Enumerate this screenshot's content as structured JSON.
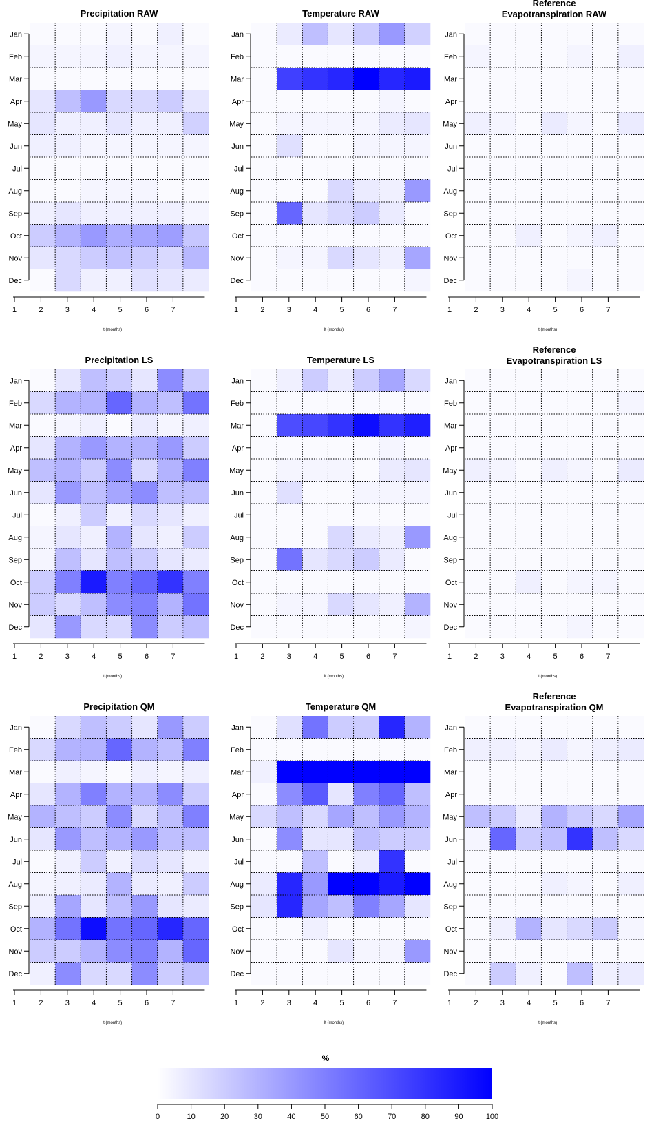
{
  "chart_data": [
    {
      "type": "heatmap",
      "title": "Precipitation RAW",
      "xlabel": "lt (months)",
      "x": [
        1,
        2,
        3,
        4,
        5,
        6,
        7
      ],
      "y": [
        "Jan",
        "Feb",
        "Mar",
        "Apr",
        "May",
        "Jun",
        "Jul",
        "Aug",
        "Sep",
        "Oct",
        "Nov",
        "Dec"
      ],
      "values": [
        [
          2,
          2,
          2,
          4,
          2,
          6,
          2
        ],
        [
          4,
          4,
          4,
          6,
          4,
          4,
          4
        ],
        [
          2,
          2,
          2,
          2,
          2,
          2,
          2
        ],
        [
          10,
          25,
          40,
          15,
          15,
          20,
          10
        ],
        [
          10,
          6,
          6,
          10,
          6,
          6,
          18
        ],
        [
          6,
          6,
          4,
          4,
          4,
          4,
          4
        ],
        [
          2,
          2,
          2,
          2,
          2,
          2,
          2
        ],
        [
          2,
          2,
          4,
          4,
          4,
          2,
          2
        ],
        [
          6,
          10,
          6,
          6,
          6,
          6,
          4
        ],
        [
          20,
          30,
          40,
          32,
          35,
          38,
          22
        ],
        [
          10,
          15,
          20,
          24,
          20,
          15,
          28
        ],
        [
          2,
          15,
          6,
          6,
          12,
          10,
          8
        ]
      ]
    },
    {
      "type": "heatmap",
      "title": "Temperature RAW",
      "xlabel": "lt (months)",
      "x": [
        1,
        2,
        3,
        4,
        5,
        6,
        7
      ],
      "y": [
        "Jan",
        "Feb",
        "Mar",
        "Apr",
        "May",
        "Jun",
        "Jul",
        "Aug",
        "Sep",
        "Oct",
        "Nov",
        "Dec"
      ],
      "values": [
        [
          2,
          8,
          25,
          10,
          20,
          40,
          18
        ],
        [
          2,
          2,
          2,
          2,
          2,
          2,
          2
        ],
        [
          2,
          75,
          80,
          85,
          100,
          85,
          90
        ],
        [
          2,
          2,
          2,
          2,
          2,
          4,
          2
        ],
        [
          2,
          4,
          4,
          4,
          4,
          8,
          10
        ],
        [
          2,
          12,
          2,
          2,
          4,
          4,
          4
        ],
        [
          2,
          2,
          2,
          2,
          2,
          2,
          2
        ],
        [
          2,
          2,
          2,
          15,
          8,
          6,
          40
        ],
        [
          2,
          60,
          10,
          15,
          20,
          8,
          2
        ],
        [
          2,
          2,
          2,
          2,
          2,
          2,
          2
        ],
        [
          2,
          4,
          4,
          15,
          10,
          6,
          35
        ],
        [
          2,
          2,
          2,
          2,
          2,
          2,
          4
        ]
      ]
    },
    {
      "type": "heatmap",
      "title": "Reference Evapotranspiration RAW",
      "title_lines": [
        "Reference",
        "Evapotranspiration RAW"
      ],
      "xlabel": "lt (months)",
      "x": [
        1,
        2,
        3,
        4,
        5,
        6,
        7
      ],
      "y": [
        "Jan",
        "Feb",
        "Mar",
        "Apr",
        "May",
        "Jun",
        "Jul",
        "Aug",
        "Sep",
        "Oct",
        "Nov",
        "Dec"
      ],
      "values": [
        [
          2,
          2,
          2,
          2,
          2,
          2,
          2
        ],
        [
          4,
          2,
          2,
          2,
          4,
          2,
          6
        ],
        [
          2,
          2,
          2,
          2,
          2,
          2,
          2
        ],
        [
          2,
          2,
          2,
          2,
          2,
          2,
          2
        ],
        [
          6,
          4,
          2,
          8,
          4,
          2,
          8
        ],
        [
          2,
          2,
          2,
          2,
          2,
          2,
          2
        ],
        [
          2,
          2,
          2,
          2,
          2,
          2,
          2
        ],
        [
          2,
          2,
          2,
          2,
          2,
          2,
          2
        ],
        [
          2,
          2,
          2,
          2,
          2,
          2,
          2
        ],
        [
          2,
          2,
          6,
          2,
          4,
          6,
          2
        ],
        [
          2,
          2,
          2,
          2,
          2,
          2,
          2
        ],
        [
          2,
          2,
          2,
          2,
          4,
          2,
          2
        ]
      ]
    },
    {
      "type": "heatmap",
      "title": "Precipitation LS",
      "xlabel": "lt (months)",
      "x": [
        1,
        2,
        3,
        4,
        5,
        6,
        7
      ],
      "y": [
        "Jan",
        "Feb",
        "Mar",
        "Apr",
        "May",
        "Jun",
        "Jul",
        "Aug",
        "Sep",
        "Oct",
        "Nov",
        "Dec"
      ],
      "values": [
        [
          2,
          10,
          25,
          20,
          10,
          45,
          20
        ],
        [
          15,
          30,
          30,
          60,
          30,
          25,
          55
        ],
        [
          2,
          4,
          6,
          2,
          8,
          4,
          6
        ],
        [
          10,
          30,
          40,
          30,
          30,
          40,
          20
        ],
        [
          25,
          30,
          20,
          45,
          15,
          30,
          50
        ],
        [
          10,
          40,
          25,
          35,
          45,
          25,
          25
        ],
        [
          2,
          6,
          20,
          6,
          15,
          10,
          6
        ],
        [
          4,
          10,
          6,
          30,
          10,
          6,
          20
        ],
        [
          4,
          25,
          10,
          25,
          20,
          10,
          8
        ],
        [
          20,
          50,
          90,
          50,
          60,
          80,
          50
        ],
        [
          20,
          15,
          25,
          45,
          50,
          30,
          55
        ],
        [
          10,
          40,
          15,
          15,
          45,
          20,
          25
        ]
      ]
    },
    {
      "type": "heatmap",
      "title": "Temperature LS",
      "xlabel": "lt (months)",
      "x": [
        1,
        2,
        3,
        4,
        5,
        6,
        7
      ],
      "y": [
        "Jan",
        "Feb",
        "Mar",
        "Apr",
        "May",
        "Jun",
        "Jul",
        "Aug",
        "Sep",
        "Oct",
        "Nov",
        "Dec"
      ],
      "values": [
        [
          2,
          6,
          20,
          8,
          20,
          35,
          15
        ],
        [
          2,
          2,
          2,
          2,
          2,
          2,
          2
        ],
        [
          2,
          70,
          72,
          80,
          95,
          80,
          88
        ],
        [
          2,
          2,
          2,
          2,
          2,
          4,
          2
        ],
        [
          2,
          4,
          4,
          4,
          2,
          8,
          10
        ],
        [
          2,
          12,
          2,
          2,
          4,
          4,
          4
        ],
        [
          2,
          2,
          2,
          2,
          2,
          2,
          2
        ],
        [
          2,
          2,
          2,
          15,
          8,
          6,
          40
        ],
        [
          2,
          55,
          10,
          15,
          20,
          8,
          2
        ],
        [
          2,
          2,
          2,
          2,
          2,
          2,
          2
        ],
        [
          2,
          4,
          4,
          15,
          10,
          6,
          30
        ],
        [
          2,
          2,
          2,
          2,
          2,
          2,
          4
        ]
      ]
    },
    {
      "type": "heatmap",
      "title": "Reference Evapotranspiration LS",
      "title_lines": [
        "Reference",
        "Evapotranspiration LS"
      ],
      "xlabel": "lt (months)",
      "x": [
        1,
        2,
        3,
        4,
        5,
        6,
        7
      ],
      "y": [
        "Jan",
        "Feb",
        "Mar",
        "Apr",
        "May",
        "Jun",
        "Jul",
        "Aug",
        "Sep",
        "Oct",
        "Nov",
        "Dec"
      ],
      "values": [
        [
          2,
          2,
          2,
          2,
          2,
          2,
          2
        ],
        [
          2,
          2,
          2,
          2,
          2,
          2,
          4
        ],
        [
          2,
          2,
          2,
          2,
          2,
          2,
          2
        ],
        [
          2,
          2,
          2,
          2,
          2,
          2,
          2
        ],
        [
          6,
          4,
          2,
          6,
          4,
          2,
          8
        ],
        [
          2,
          2,
          2,
          2,
          2,
          2,
          2
        ],
        [
          2,
          2,
          2,
          2,
          2,
          2,
          2
        ],
        [
          2,
          2,
          2,
          2,
          2,
          2,
          2
        ],
        [
          2,
          2,
          2,
          2,
          2,
          2,
          2
        ],
        [
          2,
          2,
          6,
          2,
          4,
          4,
          2
        ],
        [
          2,
          2,
          2,
          2,
          2,
          2,
          2
        ],
        [
          2,
          2,
          2,
          2,
          4,
          2,
          2
        ]
      ]
    },
    {
      "type": "heatmap",
      "title": "Precipitation QM",
      "xlabel": "lt (months)",
      "x": [
        1,
        2,
        3,
        4,
        5,
        6,
        7
      ],
      "y": [
        "Jan",
        "Feb",
        "Mar",
        "Apr",
        "May",
        "Jun",
        "Jul",
        "Aug",
        "Sep",
        "Oct",
        "Nov",
        "Dec"
      ],
      "values": [
        [
          2,
          15,
          25,
          20,
          10,
          40,
          20
        ],
        [
          15,
          30,
          30,
          60,
          30,
          25,
          50
        ],
        [
          2,
          6,
          4,
          2,
          6,
          4,
          6
        ],
        [
          10,
          30,
          50,
          30,
          30,
          45,
          20
        ],
        [
          30,
          25,
          20,
          45,
          15,
          25,
          50
        ],
        [
          10,
          40,
          25,
          30,
          40,
          25,
          25
        ],
        [
          2,
          6,
          20,
          6,
          15,
          10,
          6
        ],
        [
          4,
          6,
          8,
          30,
          8,
          6,
          20
        ],
        [
          6,
          35,
          10,
          25,
          40,
          10,
          8
        ],
        [
          30,
          55,
          95,
          55,
          60,
          85,
          60
        ],
        [
          20,
          20,
          30,
          45,
          50,
          30,
          60
        ],
        [
          6,
          45,
          15,
          15,
          45,
          20,
          25
        ]
      ]
    },
    {
      "type": "heatmap",
      "title": "Temperature QM",
      "xlabel": "lt (months)",
      "x": [
        1,
        2,
        3,
        4,
        5,
        6,
        7
      ],
      "y": [
        "Jan",
        "Feb",
        "Mar",
        "Apr",
        "May",
        "Jun",
        "Jul",
        "Aug",
        "Sep",
        "Oct",
        "Nov",
        "Dec"
      ],
      "values": [
        [
          2,
          12,
          55,
          20,
          20,
          85,
          30
        ],
        [
          2,
          2,
          2,
          2,
          2,
          2,
          2
        ],
        [
          6,
          100,
          100,
          100,
          100,
          100,
          100
        ],
        [
          2,
          45,
          65,
          10,
          50,
          60,
          25
        ],
        [
          15,
          25,
          15,
          35,
          25,
          40,
          30
        ],
        [
          2,
          45,
          10,
          10,
          25,
          20,
          20
        ],
        [
          2,
          2,
          25,
          2,
          8,
          80,
          2
        ],
        [
          8,
          85,
          40,
          100,
          100,
          90,
          100
        ],
        [
          10,
          85,
          35,
          25,
          50,
          35,
          10
        ],
        [
          2,
          2,
          6,
          2,
          2,
          2,
          2
        ],
        [
          2,
          2,
          2,
          10,
          4,
          4,
          40
        ],
        [
          2,
          2,
          2,
          2,
          2,
          2,
          2
        ]
      ]
    },
    {
      "type": "heatmap",
      "title": "Reference Evapotranspiration QM",
      "title_lines": [
        "Reference",
        "Evapotranspiration QM"
      ],
      "xlabel": "lt (months)",
      "x": [
        1,
        2,
        3,
        4,
        5,
        6,
        7
      ],
      "y": [
        "Jan",
        "Feb",
        "Mar",
        "Apr",
        "May",
        "Jun",
        "Jul",
        "Aug",
        "Sep",
        "Oct",
        "Nov",
        "Dec"
      ],
      "values": [
        [
          2,
          2,
          2,
          2,
          2,
          2,
          2
        ],
        [
          6,
          6,
          4,
          8,
          4,
          6,
          8
        ],
        [
          2,
          2,
          2,
          2,
          2,
          2,
          2
        ],
        [
          2,
          2,
          2,
          2,
          2,
          2,
          2
        ],
        [
          25,
          20,
          8,
          30,
          20,
          15,
          35
        ],
        [
          4,
          60,
          20,
          25,
          80,
          25,
          15
        ],
        [
          2,
          2,
          2,
          2,
          2,
          2,
          2
        ],
        [
          2,
          2,
          2,
          6,
          4,
          2,
          6
        ],
        [
          2,
          2,
          2,
          2,
          2,
          2,
          2
        ],
        [
          2,
          6,
          30,
          10,
          15,
          20,
          4
        ],
        [
          2,
          2,
          2,
          2,
          2,
          2,
          2
        ],
        [
          2,
          20,
          6,
          2,
          25,
          6,
          8
        ]
      ]
    }
  ],
  "colorbar": {
    "title": "%",
    "min": 0,
    "max": 100,
    "ticks": [
      0,
      10,
      20,
      30,
      40,
      50,
      60,
      70,
      80,
      90,
      100
    ],
    "color_low": "#ffffff",
    "color_high": "#0000ff"
  }
}
